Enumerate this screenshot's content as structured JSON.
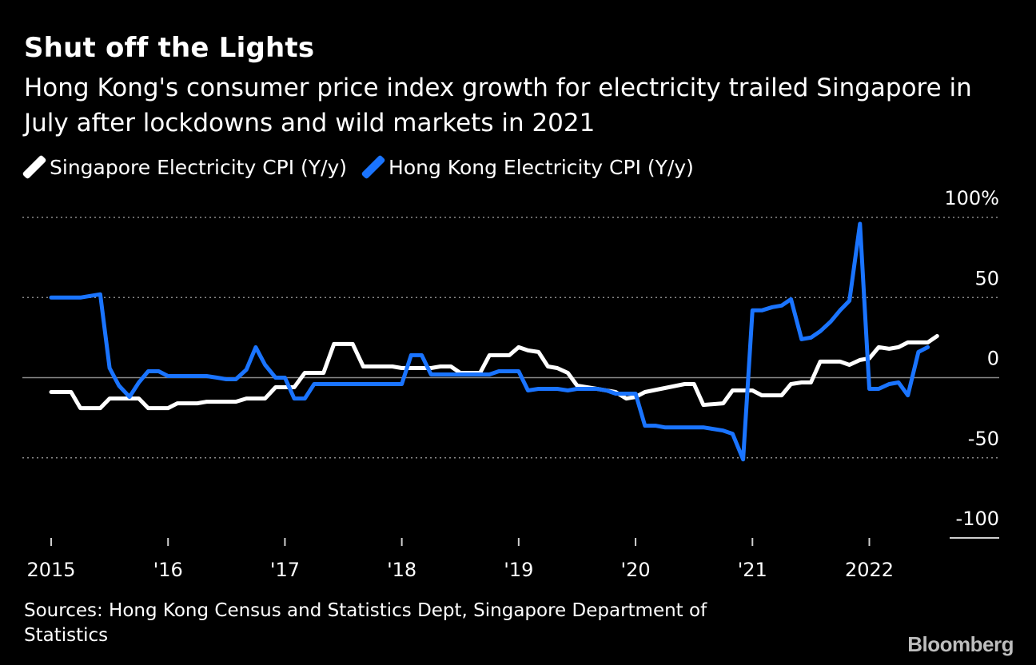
{
  "header": {
    "title": "Shut off the Lights",
    "subtitle": "Hong Kong's consumer price index growth for electricity trailed Singapore in July after lockdowns and wild markets in 2021"
  },
  "legend": [
    {
      "label": "Singapore Electricity CPI (Y/y)",
      "color": "#ffffff"
    },
    {
      "label": "Hong Kong Electricity CPI (Y/y)",
      "color": "#1a74ff"
    }
  ],
  "footer": {
    "source": "Sources: Hong Kong Census and Statistics Dept, Singapore Department of Statistics",
    "logo": "Bloomberg"
  },
  "chart_data": {
    "type": "line",
    "title": "Shut off the Lights",
    "xlabel": "",
    "ylabel": "",
    "xlim": [
      2015,
      2022.92
    ],
    "ylim": [
      -100,
      100
    ],
    "y_ticks": [
      {
        "value": 100,
        "label": "100%"
      },
      {
        "value": 50,
        "label": "50"
      },
      {
        "value": 0,
        "label": "0"
      },
      {
        "value": -50,
        "label": "-50"
      },
      {
        "value": -100,
        "label": "-100"
      }
    ],
    "x_ticks": [
      {
        "value": 2015,
        "label": "2015"
      },
      {
        "value": 2016,
        "label": "'16"
      },
      {
        "value": 2017,
        "label": "'17"
      },
      {
        "value": 2018,
        "label": "'18"
      },
      {
        "value": 2019,
        "label": "'19"
      },
      {
        "value": 2020,
        "label": "'20"
      },
      {
        "value": 2021,
        "label": "'21"
      },
      {
        "value": 2022,
        "label": "2022"
      }
    ],
    "series": [
      {
        "name": "Singapore Electricity CPI (Y/y)",
        "color": "#ffffff",
        "points": [
          [
            2015.0,
            -9
          ],
          [
            2015.17,
            -9
          ],
          [
            2015.25,
            -19
          ],
          [
            2015.42,
            -19
          ],
          [
            2015.5,
            -13
          ],
          [
            2015.75,
            -13
          ],
          [
            2015.83,
            -19
          ],
          [
            2016.0,
            -19
          ],
          [
            2016.08,
            -16
          ],
          [
            2016.25,
            -16
          ],
          [
            2016.33,
            -15
          ],
          [
            2016.58,
            -15
          ],
          [
            2016.67,
            -13
          ],
          [
            2016.83,
            -13
          ],
          [
            2016.92,
            -6
          ],
          [
            2017.08,
            -6
          ],
          [
            2017.17,
            3
          ],
          [
            2017.33,
            3
          ],
          [
            2017.42,
            21
          ],
          [
            2017.58,
            21
          ],
          [
            2017.67,
            7
          ],
          [
            2017.92,
            7
          ],
          [
            2018.0,
            6
          ],
          [
            2018.25,
            6
          ],
          [
            2018.33,
            7
          ],
          [
            2018.42,
            7
          ],
          [
            2018.5,
            3
          ],
          [
            2018.67,
            3
          ],
          [
            2018.75,
            14
          ],
          [
            2018.92,
            14
          ],
          [
            2019.0,
            19
          ],
          [
            2019.08,
            17
          ],
          [
            2019.17,
            16
          ],
          [
            2019.25,
            7
          ],
          [
            2019.33,
            6
          ],
          [
            2019.42,
            3
          ],
          [
            2019.5,
            -5
          ],
          [
            2019.67,
            -7
          ],
          [
            2019.83,
            -9
          ],
          [
            2019.92,
            -13
          ],
          [
            2020.0,
            -12
          ],
          [
            2020.08,
            -9
          ],
          [
            2020.42,
            -4
          ],
          [
            2020.5,
            -4
          ],
          [
            2020.58,
            -17
          ],
          [
            2020.75,
            -16
          ],
          [
            2020.83,
            -8
          ],
          [
            2021.0,
            -8
          ],
          [
            2021.08,
            -11
          ],
          [
            2021.25,
            -11
          ],
          [
            2021.33,
            -4
          ],
          [
            2021.42,
            -3
          ],
          [
            2021.5,
            -3
          ],
          [
            2021.58,
            10
          ],
          [
            2021.75,
            10
          ],
          [
            2021.83,
            8
          ],
          [
            2021.92,
            11
          ],
          [
            2022.0,
            12
          ],
          [
            2022.08,
            19
          ],
          [
            2022.17,
            18
          ],
          [
            2022.25,
            19
          ],
          [
            2022.33,
            22
          ],
          [
            2022.5,
            22
          ],
          [
            2022.58,
            26
          ]
        ]
      },
      {
        "name": "Hong Kong Electricity CPI (Y/y)",
        "color": "#1a74ff",
        "points": [
          [
            2015.0,
            50
          ],
          [
            2015.25,
            50
          ],
          [
            2015.42,
            52
          ],
          [
            2015.5,
            6
          ],
          [
            2015.58,
            -5
          ],
          [
            2015.67,
            -12
          ],
          [
            2015.75,
            -3
          ],
          [
            2015.83,
            4
          ],
          [
            2015.92,
            4
          ],
          [
            2016.0,
            1
          ],
          [
            2016.08,
            1
          ],
          [
            2016.33,
            1
          ],
          [
            2016.42,
            0
          ],
          [
            2016.5,
            -1
          ],
          [
            2016.58,
            -1
          ],
          [
            2016.67,
            5
          ],
          [
            2016.75,
            19
          ],
          [
            2016.83,
            8
          ],
          [
            2016.92,
            0
          ],
          [
            2017.0,
            0
          ],
          [
            2017.08,
            -13
          ],
          [
            2017.17,
            -13
          ],
          [
            2017.25,
            -4
          ],
          [
            2017.33,
            -4
          ],
          [
            2017.92,
            -4
          ],
          [
            2018.0,
            -4
          ],
          [
            2018.08,
            14
          ],
          [
            2018.17,
            14
          ],
          [
            2018.25,
            2
          ],
          [
            2018.75,
            2
          ],
          [
            2018.83,
            4
          ],
          [
            2018.92,
            4
          ],
          [
            2019.0,
            4
          ],
          [
            2019.08,
            -8
          ],
          [
            2019.17,
            -7
          ],
          [
            2019.33,
            -7
          ],
          [
            2019.42,
            -8
          ],
          [
            2019.5,
            -7
          ],
          [
            2019.67,
            -7
          ],
          [
            2019.75,
            -8
          ],
          [
            2019.83,
            -10
          ],
          [
            2019.92,
            -10
          ],
          [
            2020.0,
            -10
          ],
          [
            2020.08,
            -30
          ],
          [
            2020.17,
            -30
          ],
          [
            2020.25,
            -31
          ],
          [
            2020.5,
            -31
          ],
          [
            2020.58,
            -31
          ],
          [
            2020.75,
            -33
          ],
          [
            2020.83,
            -35
          ],
          [
            2020.92,
            -51
          ],
          [
            2021.0,
            42
          ],
          [
            2021.08,
            42
          ],
          [
            2021.17,
            44
          ],
          [
            2021.25,
            45
          ],
          [
            2021.33,
            49
          ],
          [
            2021.42,
            24
          ],
          [
            2021.5,
            25
          ],
          [
            2021.58,
            29
          ],
          [
            2021.67,
            35
          ],
          [
            2021.75,
            42
          ],
          [
            2021.83,
            48
          ],
          [
            2021.92,
            96
          ],
          [
            2022.0,
            -7
          ],
          [
            2022.08,
            -7
          ],
          [
            2022.17,
            -4
          ],
          [
            2022.25,
            -3
          ],
          [
            2022.33,
            -11
          ],
          [
            2022.42,
            16
          ],
          [
            2022.5,
            19
          ]
        ]
      }
    ]
  }
}
